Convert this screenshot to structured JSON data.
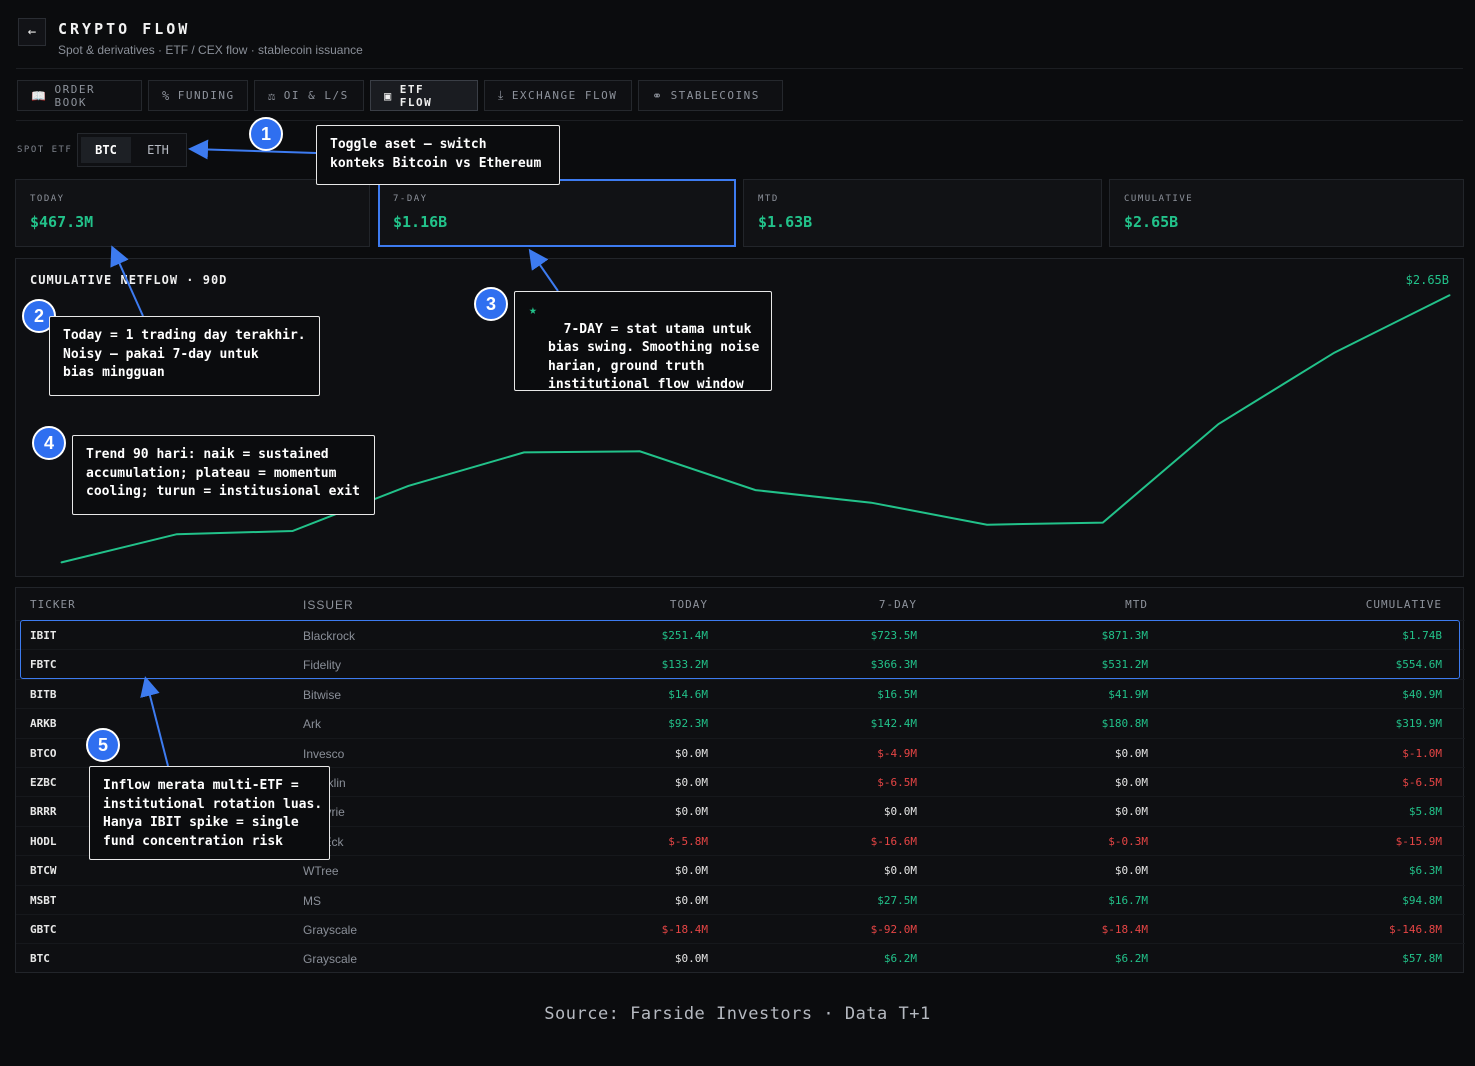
{
  "header": {
    "back_icon": "arrow-left-icon",
    "title": "CRYPTO FLOW",
    "subtitle": "Spot & derivatives · ETF / CEX flow · stablecoin issuance"
  },
  "tabs": [
    {
      "label": "ORDER BOOK",
      "icon": "book-icon"
    },
    {
      "label": "FUNDING",
      "icon": "percent-icon"
    },
    {
      "label": "OI & L/S",
      "icon": "scale-icon"
    },
    {
      "label": "ETF FLOW",
      "icon": "etf-icon",
      "active": true
    },
    {
      "label": "EXCHANGE FLOW",
      "icon": "download-icon"
    },
    {
      "label": "STABLECOINS",
      "icon": "coins-icon"
    }
  ],
  "spot_etf": {
    "label": "SPOT ETF",
    "options": [
      "BTC",
      "ETH"
    ],
    "selected": "BTC"
  },
  "stats": [
    {
      "label": "TODAY",
      "value": "$467.3M"
    },
    {
      "label": "7-DAY",
      "value": "$1.16B"
    },
    {
      "label": "MTD",
      "value": "$1.63B"
    },
    {
      "label": "CUMULATIVE",
      "value": "$2.65B"
    }
  ],
  "chart": {
    "title": "CUMULATIVE NETFLOW · 90D",
    "end_label": "$2.65B",
    "line_color": "#22c28a"
  },
  "chart_data": {
    "type": "line",
    "title": "CUMULATIVE NETFLOW · 90D",
    "xlabel": "",
    "ylabel": "",
    "grid": false,
    "series": [
      {
        "values": [
          0.1,
          0.37,
          0.4,
          0.83,
          1.15,
          1.16,
          0.79,
          0.67,
          0.46,
          0.48,
          1.42,
          2.1,
          2.65
        ]
      }
    ],
    "ylim": [
      0,
      2.65
    ],
    "end_value_label": "$2.65B"
  },
  "table": {
    "columns": [
      "TICKER",
      "ISSUER",
      "TODAY",
      "7-DAY",
      "MTD",
      "CUMULATIVE"
    ],
    "rows": [
      {
        "ticker": "IBIT",
        "issuer": "Blackrock",
        "today": "$251.4M",
        "d7": "$723.5M",
        "mtd": "$871.3M",
        "cum": "$1.74B"
      },
      {
        "ticker": "FBTC",
        "issuer": "Fidelity",
        "today": "$133.2M",
        "d7": "$366.3M",
        "mtd": "$531.2M",
        "cum": "$554.6M"
      },
      {
        "ticker": "BITB",
        "issuer": "Bitwise",
        "today": "$14.6M",
        "d7": "$16.5M",
        "mtd": "$41.9M",
        "cum": "$40.9M"
      },
      {
        "ticker": "ARKB",
        "issuer": "Ark",
        "today": "$92.3M",
        "d7": "$142.4M",
        "mtd": "$180.8M",
        "cum": "$319.9M"
      },
      {
        "ticker": "BTCO",
        "issuer": "Invesco",
        "today": "$0.0M",
        "d7": "$-4.9M",
        "mtd": "$0.0M",
        "cum": "$-1.0M"
      },
      {
        "ticker": "EZBC",
        "issuer": "Franklin",
        "today": "$0.0M",
        "d7": "$-6.5M",
        "mtd": "$0.0M",
        "cum": "$-6.5M"
      },
      {
        "ticker": "BRRR",
        "issuer": "Valkyrie",
        "today": "$0.0M",
        "d7": "$0.0M",
        "mtd": "$0.0M",
        "cum": "$5.8M"
      },
      {
        "ticker": "HODL",
        "issuer": "VanEck",
        "today": "$-5.8M",
        "d7": "$-16.6M",
        "mtd": "$-0.3M",
        "cum": "$-15.9M"
      },
      {
        "ticker": "BTCW",
        "issuer": "WTree",
        "today": "$0.0M",
        "d7": "$0.0M",
        "mtd": "$0.0M",
        "cum": "$6.3M"
      },
      {
        "ticker": "MSBT",
        "issuer": "MS",
        "today": "$0.0M",
        "d7": "$27.5M",
        "mtd": "$16.7M",
        "cum": "$94.8M"
      },
      {
        "ticker": "GBTC",
        "issuer": "Grayscale",
        "today": "$-18.4M",
        "d7": "$-92.0M",
        "mtd": "$-18.4M",
        "cum": "$-146.8M"
      },
      {
        "ticker": "BTC",
        "issuer": "Grayscale",
        "today": "$0.0M",
        "d7": "$6.2M",
        "mtd": "$6.2M",
        "cum": "$57.8M"
      }
    ]
  },
  "annotations": [
    {
      "n": "1",
      "text": "Toggle aset — switch\nkonteks Bitcoin vs Ethereum"
    },
    {
      "n": "2",
      "text": "Today = 1 trading day terakhir.\nNoisy — pakai 7-day untuk\nbias mingguan"
    },
    {
      "n": "3",
      "text": "7-DAY = stat utama untuk\nbias swing. Smoothing noise\nharian, ground truth\ninstitutional flow window"
    },
    {
      "n": "4",
      "text": "Trend 90 hari: naik = sustained\naccumulation; plateau = momentum\ncooling; turun = institusional exit"
    },
    {
      "n": "5",
      "text": "Inflow merata multi-ETF =\ninstitutional rotation luas.\nHanya IBIT spike = single\nfund concentration risk"
    }
  ],
  "accent_color": "#3d7bf0",
  "footer": "Source: Farside Investors · Data T+1"
}
